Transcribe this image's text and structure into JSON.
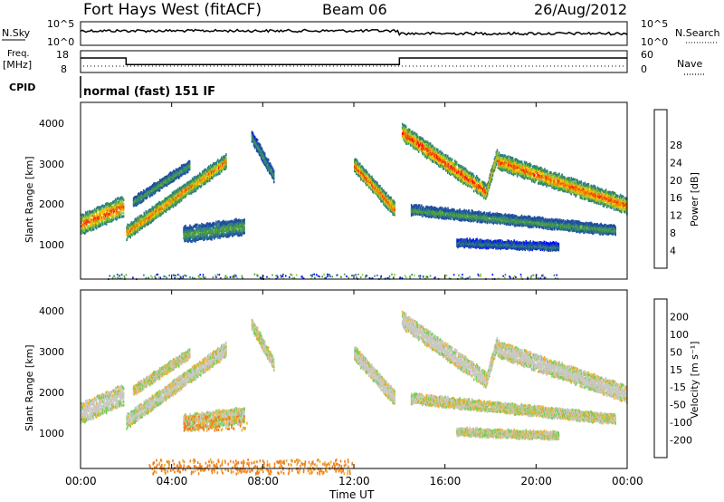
{
  "header": {
    "station": "Fort Hays West (fitACF)",
    "beam": "Beam 06",
    "date": "26/Aug/2012"
  },
  "noise_panel": {
    "left_label": "N.Sky",
    "left_ticks": [
      "10^5",
      "10^0"
    ],
    "right_label": "N.Search",
    "right_ticks": [
      "10^5",
      "10^0"
    ]
  },
  "freq_panel": {
    "left_label_top": "Freq.",
    "left_label_unit": "[MHz]",
    "left_ticks": [
      "18",
      "8"
    ],
    "right_label": "Nave",
    "right_ticks": [
      "60",
      "0"
    ]
  },
  "cpid": {
    "label": "CPID",
    "mode": "normal (fast) 151 IF"
  },
  "x_axis": {
    "label": "Time UT",
    "ticks": [
      "00:00",
      "04:00",
      "08:00",
      "12:00",
      "16:00",
      "20:00",
      "00:00"
    ]
  },
  "power_panel": {
    "ylabel": "Slant Range [km]",
    "yticks": [
      "1000",
      "2000",
      "3000",
      "4000"
    ],
    "colorbar_label": "Power [dB]",
    "colorbar_ticks": [
      "4",
      "8",
      "12",
      "16",
      "20",
      "24",
      "28"
    ],
    "colors": [
      "#0010ff",
      "#1f4ea0",
      "#2f7f7f",
      "#4e9e3e",
      "#8ec63e",
      "#f0c000",
      "#f08000",
      "#f04000",
      "#ff0000"
    ]
  },
  "velocity_panel": {
    "ylabel": "Slant Range [km]",
    "yticks": [
      "1000",
      "2000",
      "3000",
      "4000"
    ],
    "colorbar_label": "Velocity [m s⁻¹]",
    "colorbar_ticks": [
      "200",
      "100",
      "50",
      "15",
      "-15",
      "-50",
      "-100",
      "-200"
    ],
    "colors": [
      "#1030c0",
      "#2060a0",
      "#30a040",
      "#70d050",
      "#c8c8c0",
      "#f0b030",
      "#f08020",
      "#f03010",
      "#ff0000"
    ]
  },
  "chart_data": {
    "type": "heatmap",
    "xlabel": "Time UT",
    "ylabel": "Slant Range [km]",
    "xlim_hours": [
      0,
      24
    ],
    "ylim_km": [
      180,
      4500
    ],
    "frequency_segments_mhz": [
      {
        "start_hour": 0,
        "end_hour": 2,
        "freq": 15
      },
      {
        "start_hour": 2,
        "end_hour": 14,
        "freq": 10.5
      },
      {
        "start_hour": 14,
        "end_hour": 24,
        "freq": 15
      }
    ],
    "power_bands": [
      {
        "start_hour": 0.0,
        "end_hour": 1.9,
        "range_start_km": 1550,
        "range_end_km": 2000,
        "width_km": 450,
        "peak_db": 28
      },
      {
        "start_hour": 2.0,
        "end_hour": 6.4,
        "range_start_km": 1350,
        "range_end_km": 3100,
        "width_km": 300,
        "peak_db": 26
      },
      {
        "start_hour": 2.3,
        "end_hour": 4.8,
        "range_start_km": 2100,
        "range_end_km": 3000,
        "width_km": 200,
        "peak_db": 14
      },
      {
        "start_hour": 4.5,
        "end_hour": 7.2,
        "range_start_km": 1300,
        "range_end_km": 1500,
        "width_km": 350,
        "peak_db": 14
      },
      {
        "start_hour": 7.5,
        "end_hour": 8.5,
        "range_start_km": 3700,
        "range_end_km": 2700,
        "width_km": 250,
        "peak_db": 12
      },
      {
        "start_hour": 12.0,
        "end_hour": 13.8,
        "range_start_km": 3000,
        "range_end_km": 1900,
        "width_km": 300,
        "peak_db": 28
      },
      {
        "start_hour": 14.1,
        "end_hour": 17.8,
        "range_start_km": 3800,
        "range_end_km": 2350,
        "width_km": 350,
        "peak_db": 30
      },
      {
        "start_hour": 17.8,
        "end_hour": 18.3,
        "range_start_km": 2350,
        "range_end_km": 3300,
        "width_km": 250,
        "peak_db": 24
      },
      {
        "start_hour": 18.3,
        "end_hour": 24.0,
        "range_start_km": 3100,
        "range_end_km": 2000,
        "width_km": 350,
        "peak_db": 28
      },
      {
        "start_hour": 14.5,
        "end_hour": 23.5,
        "range_start_km": 1900,
        "range_end_km": 1400,
        "width_km": 200,
        "peak_db": 14
      },
      {
        "start_hour": 16.5,
        "end_hour": 21.0,
        "range_start_km": 1100,
        "range_end_km": 1000,
        "width_km": 150,
        "peak_db": 10
      }
    ],
    "velocity_regions": [
      {
        "start_hour": 4.5,
        "end_hour": 7.3,
        "range_start_km": 1300,
        "range_end_km": 1400,
        "velocity_ms": -60
      },
      {
        "start_hour": 3.0,
        "end_hour": 12.0,
        "range_start_km": 250,
        "range_end_km": 250,
        "velocity_ms": -60
      },
      {
        "start_hour": 0.0,
        "end_hour": 24.0,
        "range_start_km": 2000,
        "range_end_km": 2000,
        "velocity_ms": 0
      }
    ]
  }
}
